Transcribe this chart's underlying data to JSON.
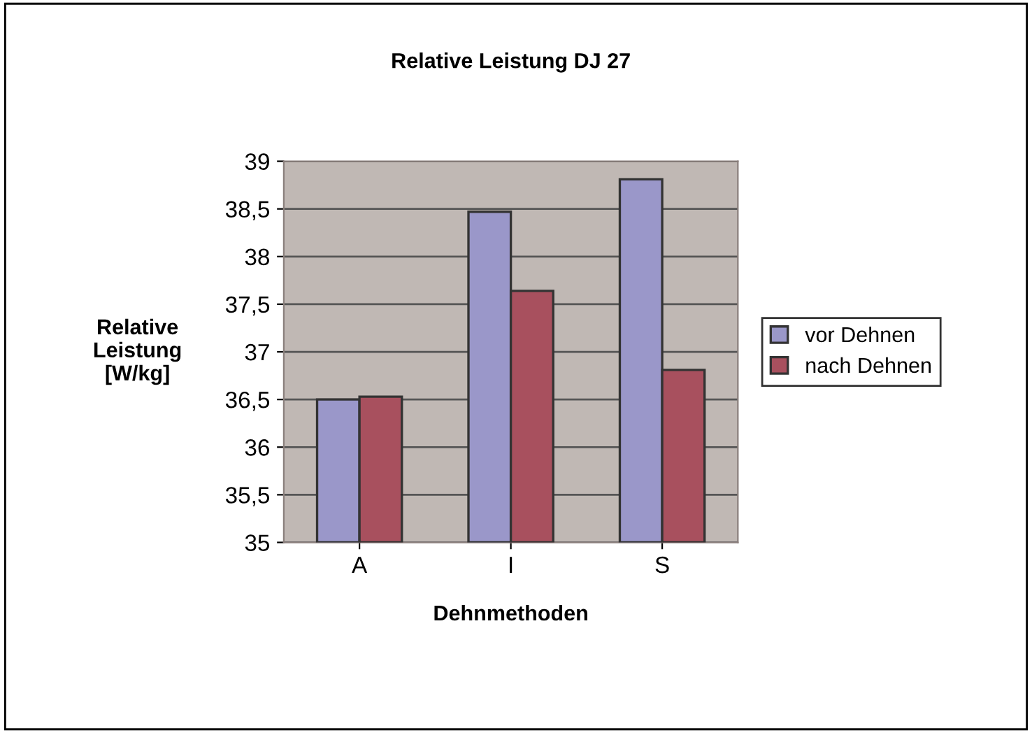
{
  "chart_data": {
    "type": "bar",
    "title": "Relative Leistung DJ 27",
    "xlabel": "Dehnmethoden",
    "ylabel": "Relative\nLeistung\n[W/kg]",
    "categories": [
      "A",
      "I",
      "S"
    ],
    "series": [
      {
        "name": "vor Dehnen",
        "color": "#9a97c9",
        "values": [
          36.5,
          38.47,
          38.81
        ]
      },
      {
        "name": "nach Dehnen",
        "color": "#a8505e",
        "values": [
          36.53,
          37.64,
          36.81
        ]
      }
    ],
    "ylim": [
      35,
      39
    ],
    "yticks": [
      {
        "value": 35,
        "label": "35"
      },
      {
        "value": 35.5,
        "label": "35,5"
      },
      {
        "value": 36,
        "label": "36"
      },
      {
        "value": 36.5,
        "label": "36,5"
      },
      {
        "value": 37,
        "label": "37"
      },
      {
        "value": 37.5,
        "label": "37,5"
      },
      {
        "value": 38,
        "label": "38"
      },
      {
        "value": 38.5,
        "label": "38,5"
      },
      {
        "value": 39,
        "label": "39"
      }
    ],
    "grid": "y",
    "legend": "right"
  }
}
